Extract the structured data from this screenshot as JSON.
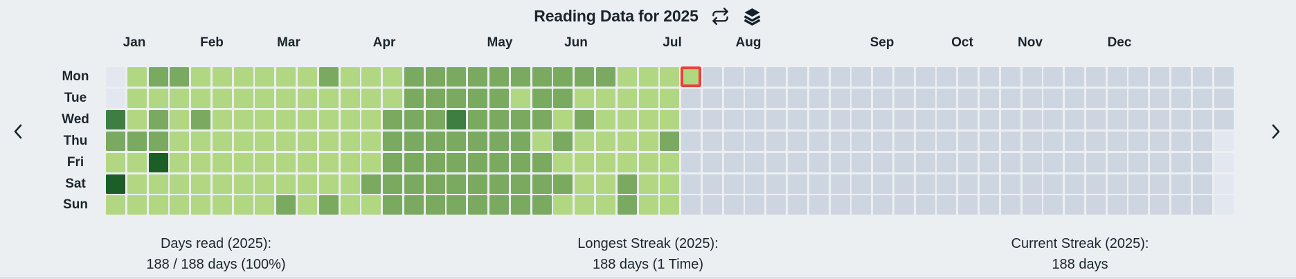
{
  "header": {
    "title": "Reading Data for 2025",
    "actions": [
      {
        "icon": "refresh-icon"
      },
      {
        "icon": "layers-icon"
      }
    ]
  },
  "nav": {
    "prev_icon": "chevron-left-icon",
    "next_icon": "chevron-right-icon"
  },
  "stats": [
    {
      "label": "Days read (2025):",
      "value": "188 / 188 days (100%)"
    },
    {
      "label": "Longest Streak (2025):",
      "value": "188 days (1 Time)"
    },
    {
      "label": "Current Streak (2025):",
      "value": "188 days"
    }
  ],
  "chart_data": {
    "type": "heatmap",
    "title": "Reading Data for 2025",
    "year": 2025,
    "weeks": 53,
    "x_axis": {
      "ticks": [
        "Jan",
        "Feb",
        "Mar",
        "Apr",
        "May",
        "Jun",
        "Jul",
        "Aug",
        "Sep",
        "Oct",
        "Nov",
        "Dec"
      ]
    },
    "y_axis": {
      "ticks": [
        "Mon",
        "Tue",
        "Wed",
        "Thu",
        "Fri",
        "Sat",
        "Sun"
      ]
    },
    "level_legend": {
      "x": "outside-year",
      ".": "no-data-future",
      "1": "read-light",
      "2": "read-medium",
      "3": "read-dark",
      "4": "read-darkest"
    },
    "palette": {
      "x": "#e3e8f0",
      ".": "#cdd6e0",
      "1": "#b2d782",
      "2": "#7aaa60",
      "3": "#3e7e41",
      "4": "#1b5e26",
      "highlight_border": "#e8413c"
    },
    "rows": [
      {
        "day": "Mon",
        "levels": "x122111111211122222222221111........................."
      },
      {
        "day": "Tue",
        "levels": "x11111111111112222212211111.........................."
      },
      {
        "day": "Wed",
        "levels": "312121111111122232222121111.........................."
      },
      {
        "day": "Thu",
        "levels": "222111111111122222221211112.........................x"
      },
      {
        "day": "Fri",
        "levels": "114111111111122222222111111.........................x"
      },
      {
        "day": "Sat",
        "levels": "411111111111222222222211211.........................x"
      },
      {
        "day": "Sun",
        "levels": "111111112121122222222111211.........................x"
      }
    ],
    "highlight": {
      "row_index": 0,
      "week_index": 27,
      "day": "Mon"
    }
  }
}
